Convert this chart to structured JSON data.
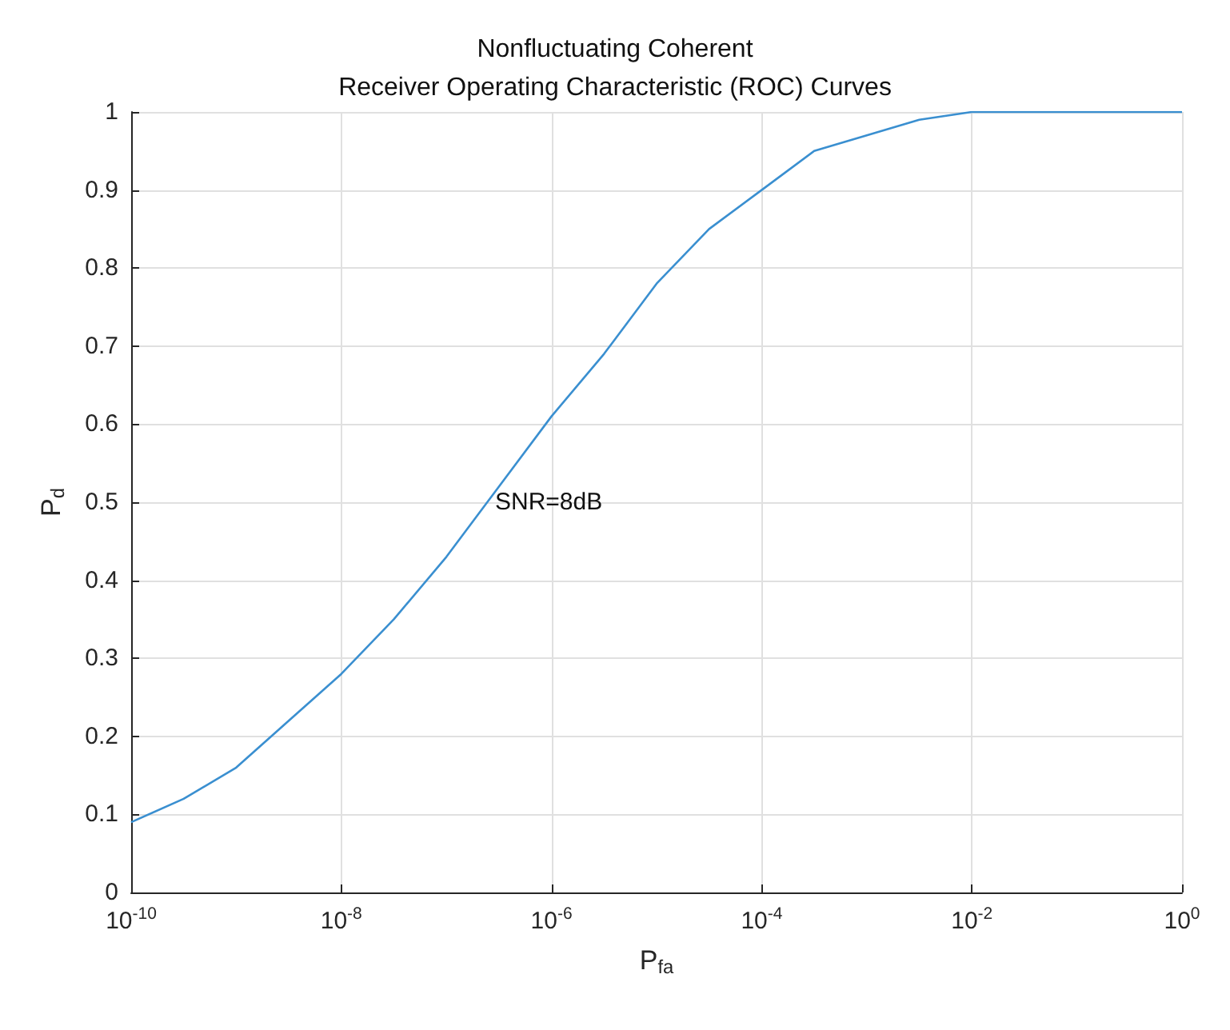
{
  "chart_data": {
    "type": "line",
    "title": "Nonfluctuating Coherent\nReceiver Operating Characteristic (ROC) Curves",
    "xlabel": "P$_{fa}$",
    "ylabel": "P$_{d}$",
    "x": [
      1e-10,
      3.16e-10,
      1e-09,
      3.16e-09,
      1e-08,
      3.16e-08,
      1e-07,
      3.16e-07,
      1e-06,
      3.16e-06,
      1e-05,
      3.16e-05,
      0.0001,
      0.000316,
      0.001,
      0.00316,
      0.01,
      0.1,
      1
    ],
    "series": [
      {
        "color": "#3a8fd0",
        "values": [
          0.09,
          0.12,
          0.16,
          0.22,
          0.28,
          0.35,
          0.43,
          0.52,
          0.61,
          0.69,
          0.78,
          0.85,
          0.9,
          0.95,
          0.97,
          0.99,
          1.0,
          1.0,
          1.0
        ]
      }
    ],
    "log": "x",
    "xlim": [
      1e-10,
      1
    ],
    "ylim": [
      0,
      1
    ],
    "xticks": [
      {
        "value": 1e-10,
        "label": "10$^{-10}$"
      },
      {
        "value": 1e-08,
        "label": "10$^{-8}$"
      },
      {
        "value": 1e-06,
        "label": "10$^{-6}$"
      },
      {
        "value": 0.0001,
        "label": "10$^{-4}$"
      },
      {
        "value": 0.01,
        "label": "10$^{-2}$"
      },
      {
        "value": 1,
        "label": "10$^{0}$"
      }
    ],
    "yticks": [
      0,
      0.1,
      0.2,
      0.3,
      0.4,
      0.5,
      0.6,
      0.7,
      0.8,
      0.9,
      1
    ],
    "annotations": [
      {
        "text": "SNR=8dB",
        "x": 2.9e-07,
        "y": 0.5
      }
    ],
    "grid": true,
    "marker": "none",
    "line_style": "solid"
  }
}
